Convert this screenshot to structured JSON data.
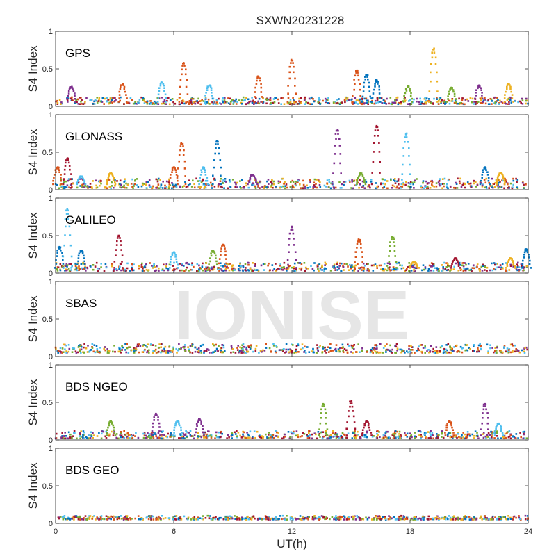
{
  "figure": {
    "title": "SXWN20231228",
    "xlabel": "UT(h)",
    "watermark": "IONISE"
  },
  "colors": [
    "#0072BD",
    "#D95319",
    "#EDB120",
    "#7E2F8E",
    "#77AC30",
    "#4DBEEE",
    "#A2142F"
  ],
  "chart_data": [
    {
      "type": "scatter",
      "panel_label": "GPS",
      "ylabel": "S4 Index",
      "xlim": [
        0,
        24
      ],
      "ylim": [
        0,
        1
      ],
      "x_ticks": [
        0,
        6,
        12,
        18,
        24
      ],
      "y_ticks": [
        0,
        0.5,
        1
      ],
      "baseline_range": [
        0.03,
        0.12
      ],
      "scintillation_spikes": [
        {
          "x": 0.8,
          "peak": 0.26,
          "color": 3
        },
        {
          "x": 3.4,
          "peak": 0.3,
          "color": 1
        },
        {
          "x": 5.4,
          "peak": 0.32,
          "color": 5
        },
        {
          "x": 6.5,
          "peak": 0.58,
          "color": 1
        },
        {
          "x": 7.8,
          "peak": 0.28,
          "color": 5
        },
        {
          "x": 10.3,
          "peak": 0.4,
          "color": 1
        },
        {
          "x": 12.0,
          "peak": 0.62,
          "color": 1
        },
        {
          "x": 15.3,
          "peak": 0.48,
          "color": 1
        },
        {
          "x": 15.8,
          "peak": 0.42,
          "color": 0
        },
        {
          "x": 16.3,
          "peak": 0.35,
          "color": 0
        },
        {
          "x": 17.9,
          "peak": 0.27,
          "color": 4
        },
        {
          "x": 19.2,
          "peak": 0.77,
          "color": 2
        },
        {
          "x": 20.1,
          "peak": 0.25,
          "color": 4
        },
        {
          "x": 21.5,
          "peak": 0.28,
          "color": 3
        },
        {
          "x": 23.0,
          "peak": 0.3,
          "color": 2
        }
      ]
    },
    {
      "type": "scatter",
      "panel_label": "GLONASS",
      "ylabel": "S4 Index",
      "xlim": [
        0,
        24
      ],
      "ylim": [
        0,
        1
      ],
      "x_ticks": [
        0,
        6,
        12,
        18,
        24
      ],
      "y_ticks": [
        0,
        0.5,
        1
      ],
      "baseline_range": [
        0.02,
        0.15
      ],
      "scintillation_spikes": [
        {
          "x": 0.1,
          "peak": 0.3,
          "color": 1
        },
        {
          "x": 0.6,
          "peak": 0.42,
          "color": 6
        },
        {
          "x": 1.3,
          "peak": 0.18,
          "color": 5
        },
        {
          "x": 2.8,
          "peak": 0.22,
          "color": 2
        },
        {
          "x": 6.0,
          "peak": 0.3,
          "color": 1
        },
        {
          "x": 6.4,
          "peak": 0.62,
          "color": 1
        },
        {
          "x": 7.5,
          "peak": 0.3,
          "color": 5
        },
        {
          "x": 8.2,
          "peak": 0.65,
          "color": 0
        },
        {
          "x": 10.0,
          "peak": 0.2,
          "color": 3
        },
        {
          "x": 14.3,
          "peak": 0.8,
          "color": 3
        },
        {
          "x": 15.5,
          "peak": 0.22,
          "color": 4
        },
        {
          "x": 16.3,
          "peak": 0.85,
          "color": 6
        },
        {
          "x": 17.8,
          "peak": 0.75,
          "color": 5
        },
        {
          "x": 21.8,
          "peak": 0.3,
          "color": 0
        },
        {
          "x": 22.6,
          "peak": 0.22,
          "color": 2
        }
      ]
    },
    {
      "type": "scatter",
      "panel_label": "GALILEO",
      "ylabel": "S4 Index",
      "xlim": [
        0,
        24
      ],
      "ylim": [
        0,
        1
      ],
      "x_ticks": [
        0,
        6,
        12,
        18,
        24
      ],
      "y_ticks": [
        0,
        0.5,
        1
      ],
      "baseline_range": [
        0.03,
        0.14
      ],
      "scintillation_spikes": [
        {
          "x": 0.2,
          "peak": 0.35,
          "color": 0
        },
        {
          "x": 0.6,
          "peak": 0.85,
          "color": 5
        },
        {
          "x": 1.3,
          "peak": 0.3,
          "color": 0
        },
        {
          "x": 3.2,
          "peak": 0.5,
          "color": 6
        },
        {
          "x": 6.0,
          "peak": 0.28,
          "color": 5
        },
        {
          "x": 8.0,
          "peak": 0.3,
          "color": 4
        },
        {
          "x": 8.5,
          "peak": 0.38,
          "color": 1
        },
        {
          "x": 12.0,
          "peak": 0.62,
          "color": 3
        },
        {
          "x": 15.4,
          "peak": 0.45,
          "color": 1
        },
        {
          "x": 17.1,
          "peak": 0.48,
          "color": 4
        },
        {
          "x": 18.2,
          "peak": 0.15,
          "color": 2
        },
        {
          "x": 20.3,
          "peak": 0.2,
          "color": 6
        },
        {
          "x": 23.1,
          "peak": 0.2,
          "color": 2
        },
        {
          "x": 23.9,
          "peak": 0.32,
          "color": 0
        }
      ]
    },
    {
      "type": "scatter",
      "panel_label": "SBAS",
      "ylabel": "S4 Index",
      "xlim": [
        0,
        24
      ],
      "ylim": [
        0,
        1
      ],
      "x_ticks": [
        0,
        6,
        12,
        18,
        24
      ],
      "y_ticks": [
        0,
        0.5,
        1
      ],
      "baseline_range": [
        0.05,
        0.17
      ],
      "scintillation_spikes": []
    },
    {
      "type": "scatter",
      "panel_label": "BDS NGEO",
      "ylabel": "S4 Index",
      "xlim": [
        0,
        24
      ],
      "ylim": [
        0,
        1
      ],
      "x_ticks": [
        0,
        6,
        12,
        18,
        24
      ],
      "y_ticks": [
        0,
        0.5,
        1
      ],
      "baseline_range": [
        0.02,
        0.12
      ],
      "scintillation_spikes": [
        {
          "x": 2.8,
          "peak": 0.25,
          "color": 4
        },
        {
          "x": 5.1,
          "peak": 0.35,
          "color": 3
        },
        {
          "x": 6.2,
          "peak": 0.25,
          "color": 5
        },
        {
          "x": 7.3,
          "peak": 0.28,
          "color": 3
        },
        {
          "x": 13.6,
          "peak": 0.48,
          "color": 4
        },
        {
          "x": 15.0,
          "peak": 0.52,
          "color": 6
        },
        {
          "x": 15.8,
          "peak": 0.25,
          "color": 6
        },
        {
          "x": 20.0,
          "peak": 0.25,
          "color": 1
        },
        {
          "x": 21.8,
          "peak": 0.48,
          "color": 3
        },
        {
          "x": 22.5,
          "peak": 0.22,
          "color": 5
        }
      ]
    },
    {
      "type": "scatter",
      "panel_label": "BDS GEO",
      "ylabel": "S4 Index",
      "xlim": [
        0,
        24
      ],
      "ylim": [
        0,
        1
      ],
      "x_ticks": [
        0,
        6,
        12,
        18,
        24
      ],
      "y_ticks": [
        0,
        0.5,
        1
      ],
      "baseline_range": [
        0.05,
        0.1
      ],
      "scintillation_spikes": []
    }
  ]
}
